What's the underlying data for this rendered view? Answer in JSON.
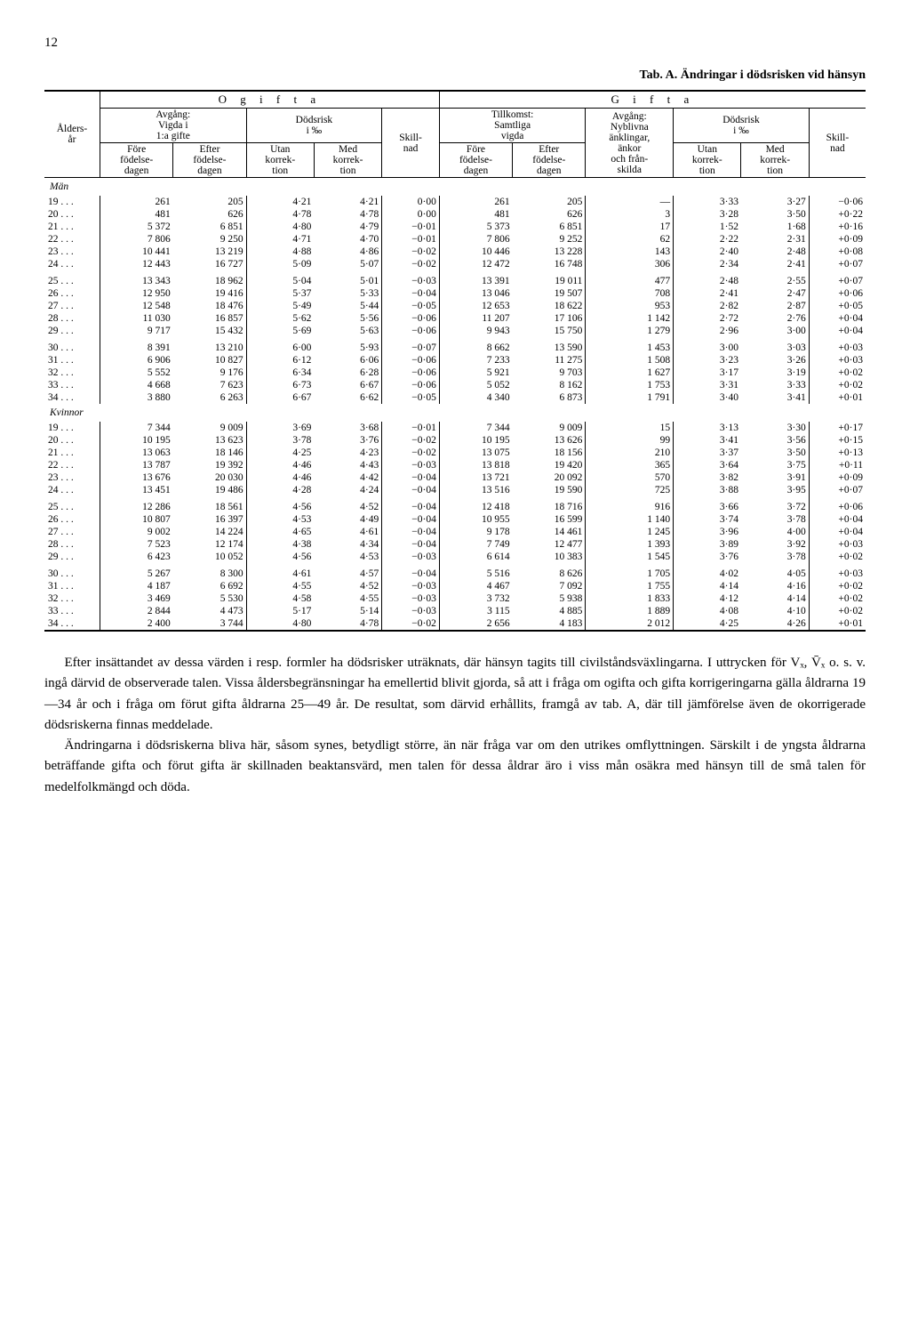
{
  "pageNumber": "12",
  "tableTitle": "Tab. A.   Ändringar i dödsrisken vid hänsyn",
  "headers": {
    "ageCol": "Ålders-\når",
    "ogifta": "O  g  i  f  t  a",
    "gifta": "G  i  f  t  a",
    "avgang1": "Avgång:\nVigda i\n1:a gifte",
    "dodsrisk": "Dödsrisk\ni ‰",
    "skillnad": "Skill-\nnad",
    "tillkomst": "Tillkomst:\nSamtliga\nvigda",
    "avgang2": "Avgång:\nNyblivna\nänklingar,\nänkor\noch från-\nskilda",
    "fore": "Före\nfödelse-\ndagen",
    "efter": "Efter\nfödelse-\ndagen",
    "utan": "Utan\nkorrek-\ntion",
    "med": "Med\nkorrek-\ntion"
  },
  "sections": [
    {
      "label": "Män",
      "groups": [
        [
          [
            "19",
            "261",
            "205",
            "4·21",
            "4·21",
            "0·00",
            "261",
            "205",
            "—",
            "3·33",
            "3·27",
            "−0·06"
          ],
          [
            "20",
            "481",
            "626",
            "4·78",
            "4·78",
            "0·00",
            "481",
            "626",
            "3",
            "3·28",
            "3·50",
            "+0·22"
          ],
          [
            "21",
            "5 372",
            "6 851",
            "4·80",
            "4·79",
            "−0·01",
            "5 373",
            "6 851",
            "17",
            "1·52",
            "1·68",
            "+0·16"
          ],
          [
            "22",
            "7 806",
            "9 250",
            "4·71",
            "4·70",
            "−0·01",
            "7 806",
            "9 252",
            "62",
            "2·22",
            "2·31",
            "+0·09"
          ],
          [
            "23",
            "10 441",
            "13 219",
            "4·88",
            "4·86",
            "−0·02",
            "10 446",
            "13 228",
            "143",
            "2·40",
            "2·48",
            "+0·08"
          ],
          [
            "24",
            "12 443",
            "16 727",
            "5·09",
            "5·07",
            "−0·02",
            "12 472",
            "16 748",
            "306",
            "2·34",
            "2·41",
            "+0·07"
          ]
        ],
        [
          [
            "25",
            "13 343",
            "18 962",
            "5·04",
            "5·01",
            "−0·03",
            "13 391",
            "19 011",
            "477",
            "2·48",
            "2·55",
            "+0·07"
          ],
          [
            "26",
            "12 950",
            "19 416",
            "5·37",
            "5·33",
            "−0·04",
            "13 046",
            "19 507",
            "708",
            "2·41",
            "2·47",
            "+0·06"
          ],
          [
            "27",
            "12 548",
            "18 476",
            "5·49",
            "5·44",
            "−0·05",
            "12 653",
            "18 622",
            "953",
            "2·82",
            "2·87",
            "+0·05"
          ],
          [
            "28",
            "11 030",
            "16 857",
            "5·62",
            "5·56",
            "−0·06",
            "11 207",
            "17 106",
            "1 142",
            "2·72",
            "2·76",
            "+0·04"
          ],
          [
            "29",
            "9 717",
            "15 432",
            "5·69",
            "5·63",
            "−0·06",
            "9 943",
            "15 750",
            "1 279",
            "2·96",
            "3·00",
            "+0·04"
          ]
        ],
        [
          [
            "30",
            "8 391",
            "13 210",
            "6·00",
            "5·93",
            "−0·07",
            "8 662",
            "13 590",
            "1 453",
            "3·00",
            "3·03",
            "+0·03"
          ],
          [
            "31",
            "6 906",
            "10 827",
            "6·12",
            "6·06",
            "−0·06",
            "7 233",
            "11 275",
            "1 508",
            "3·23",
            "3·26",
            "+0·03"
          ],
          [
            "32",
            "5 552",
            "9 176",
            "6·34",
            "6·28",
            "−0·06",
            "5 921",
            "9 703",
            "1 627",
            "3·17",
            "3·19",
            "+0·02"
          ],
          [
            "33",
            "4 668",
            "7 623",
            "6·73",
            "6·67",
            "−0·06",
            "5 052",
            "8 162",
            "1 753",
            "3·31",
            "3·33",
            "+0·02"
          ],
          [
            "34",
            "3 880",
            "6 263",
            "6·67",
            "6·62",
            "−0·05",
            "4 340",
            "6 873",
            "1 791",
            "3·40",
            "3·41",
            "+0·01"
          ]
        ]
      ]
    },
    {
      "label": "Kvinnor",
      "groups": [
        [
          [
            "19",
            "7 344",
            "9 009",
            "3·69",
            "3·68",
            "−0·01",
            "7 344",
            "9 009",
            "15",
            "3·13",
            "3·30",
            "+0·17"
          ],
          [
            "20",
            "10 195",
            "13 623",
            "3·78",
            "3·76",
            "−0·02",
            "10 195",
            "13 626",
            "99",
            "3·41",
            "3·56",
            "+0·15"
          ],
          [
            "21",
            "13 063",
            "18 146",
            "4·25",
            "4·23",
            "−0·02",
            "13 075",
            "18 156",
            "210",
            "3·37",
            "3·50",
            "+0·13"
          ],
          [
            "22",
            "13 787",
            "19 392",
            "4·46",
            "4·43",
            "−0·03",
            "13 818",
            "19 420",
            "365",
            "3·64",
            "3·75",
            "+0·11"
          ],
          [
            "23",
            "13 676",
            "20 030",
            "4·46",
            "4·42",
            "−0·04",
            "13 721",
            "20 092",
            "570",
            "3·82",
            "3·91",
            "+0·09"
          ],
          [
            "24",
            "13 451",
            "19 486",
            "4·28",
            "4·24",
            "−0·04",
            "13 516",
            "19 590",
            "725",
            "3·88",
            "3·95",
            "+0·07"
          ]
        ],
        [
          [
            "25",
            "12 286",
            "18 561",
            "4·56",
            "4·52",
            "−0·04",
            "12 418",
            "18 716",
            "916",
            "3·66",
            "3·72",
            "+0·06"
          ],
          [
            "26",
            "10 807",
            "16 397",
            "4·53",
            "4·49",
            "−0·04",
            "10 955",
            "16 599",
            "1 140",
            "3·74",
            "3·78",
            "+0·04"
          ],
          [
            "27",
            "9 002",
            "14 224",
            "4·65",
            "4·61",
            "−0·04",
            "9 178",
            "14 461",
            "1 245",
            "3·96",
            "4·00",
            "+0·04"
          ],
          [
            "28",
            "7 523",
            "12 174",
            "4·38",
            "4·34",
            "−0·04",
            "7 749",
            "12 477",
            "1 393",
            "3·89",
            "3·92",
            "+0·03"
          ],
          [
            "29",
            "6 423",
            "10 052",
            "4·56",
            "4·53",
            "−0·03",
            "6 614",
            "10 383",
            "1 545",
            "3·76",
            "3·78",
            "+0·02"
          ]
        ],
        [
          [
            "30",
            "5 267",
            "8 300",
            "4·61",
            "4·57",
            "−0·04",
            "5 516",
            "8 626",
            "1 705",
            "4·02",
            "4·05",
            "+0·03"
          ],
          [
            "31",
            "4 187",
            "6 692",
            "4·55",
            "4·52",
            "−0·03",
            "4 467",
            "7 092",
            "1 755",
            "4·14",
            "4·16",
            "+0·02"
          ],
          [
            "32",
            "3 469",
            "5 530",
            "4·58",
            "4·55",
            "−0·03",
            "3 732",
            "5 938",
            "1 833",
            "4·12",
            "4·14",
            "+0·02"
          ],
          [
            "33",
            "2 844",
            "4 473",
            "5·17",
            "5·14",
            "−0·03",
            "3 115",
            "4 885",
            "1 889",
            "4·08",
            "4·10",
            "+0·02"
          ],
          [
            "34",
            "2 400",
            "3 744",
            "4·80",
            "4·78",
            "−0·02",
            "2 656",
            "4 183",
            "2 012",
            "4·25",
            "4·26",
            "+0·01"
          ]
        ]
      ]
    }
  ],
  "paragraphs": [
    "Efter insättandet av dessa värden i resp. formler ha dödsrisker uträknats, där hänsyn tagits till civilståndsväxlingarna. I uttrycken för Vₓ, V̄ₓ o. s. v. ingå därvid de observerade talen. Vissa åldersbegränsningar ha emellertid blivit gjorda, så att i fråga om ogifta och gifta korrigeringarna gälla åldrarna 19—34 år och i fråga om förut gifta åldrarna 25—49 år. De resultat, som därvid erhållits, framgå av tab. A, där till jämförelse även de okorrigerade dödsriskerna finnas meddelade.",
    "Ändringarna i dödsriskerna bliva här, såsom synes, betydligt större, än när fråga var om den utrikes omflyttningen. Särskilt i de yngsta åldrarna beträffande gifta och förut gifta är skillnaden beaktansvärd, men talen för dessa åldrar äro i viss mån osäkra med hänsyn till de små talen för medelfolkmängd och döda."
  ]
}
